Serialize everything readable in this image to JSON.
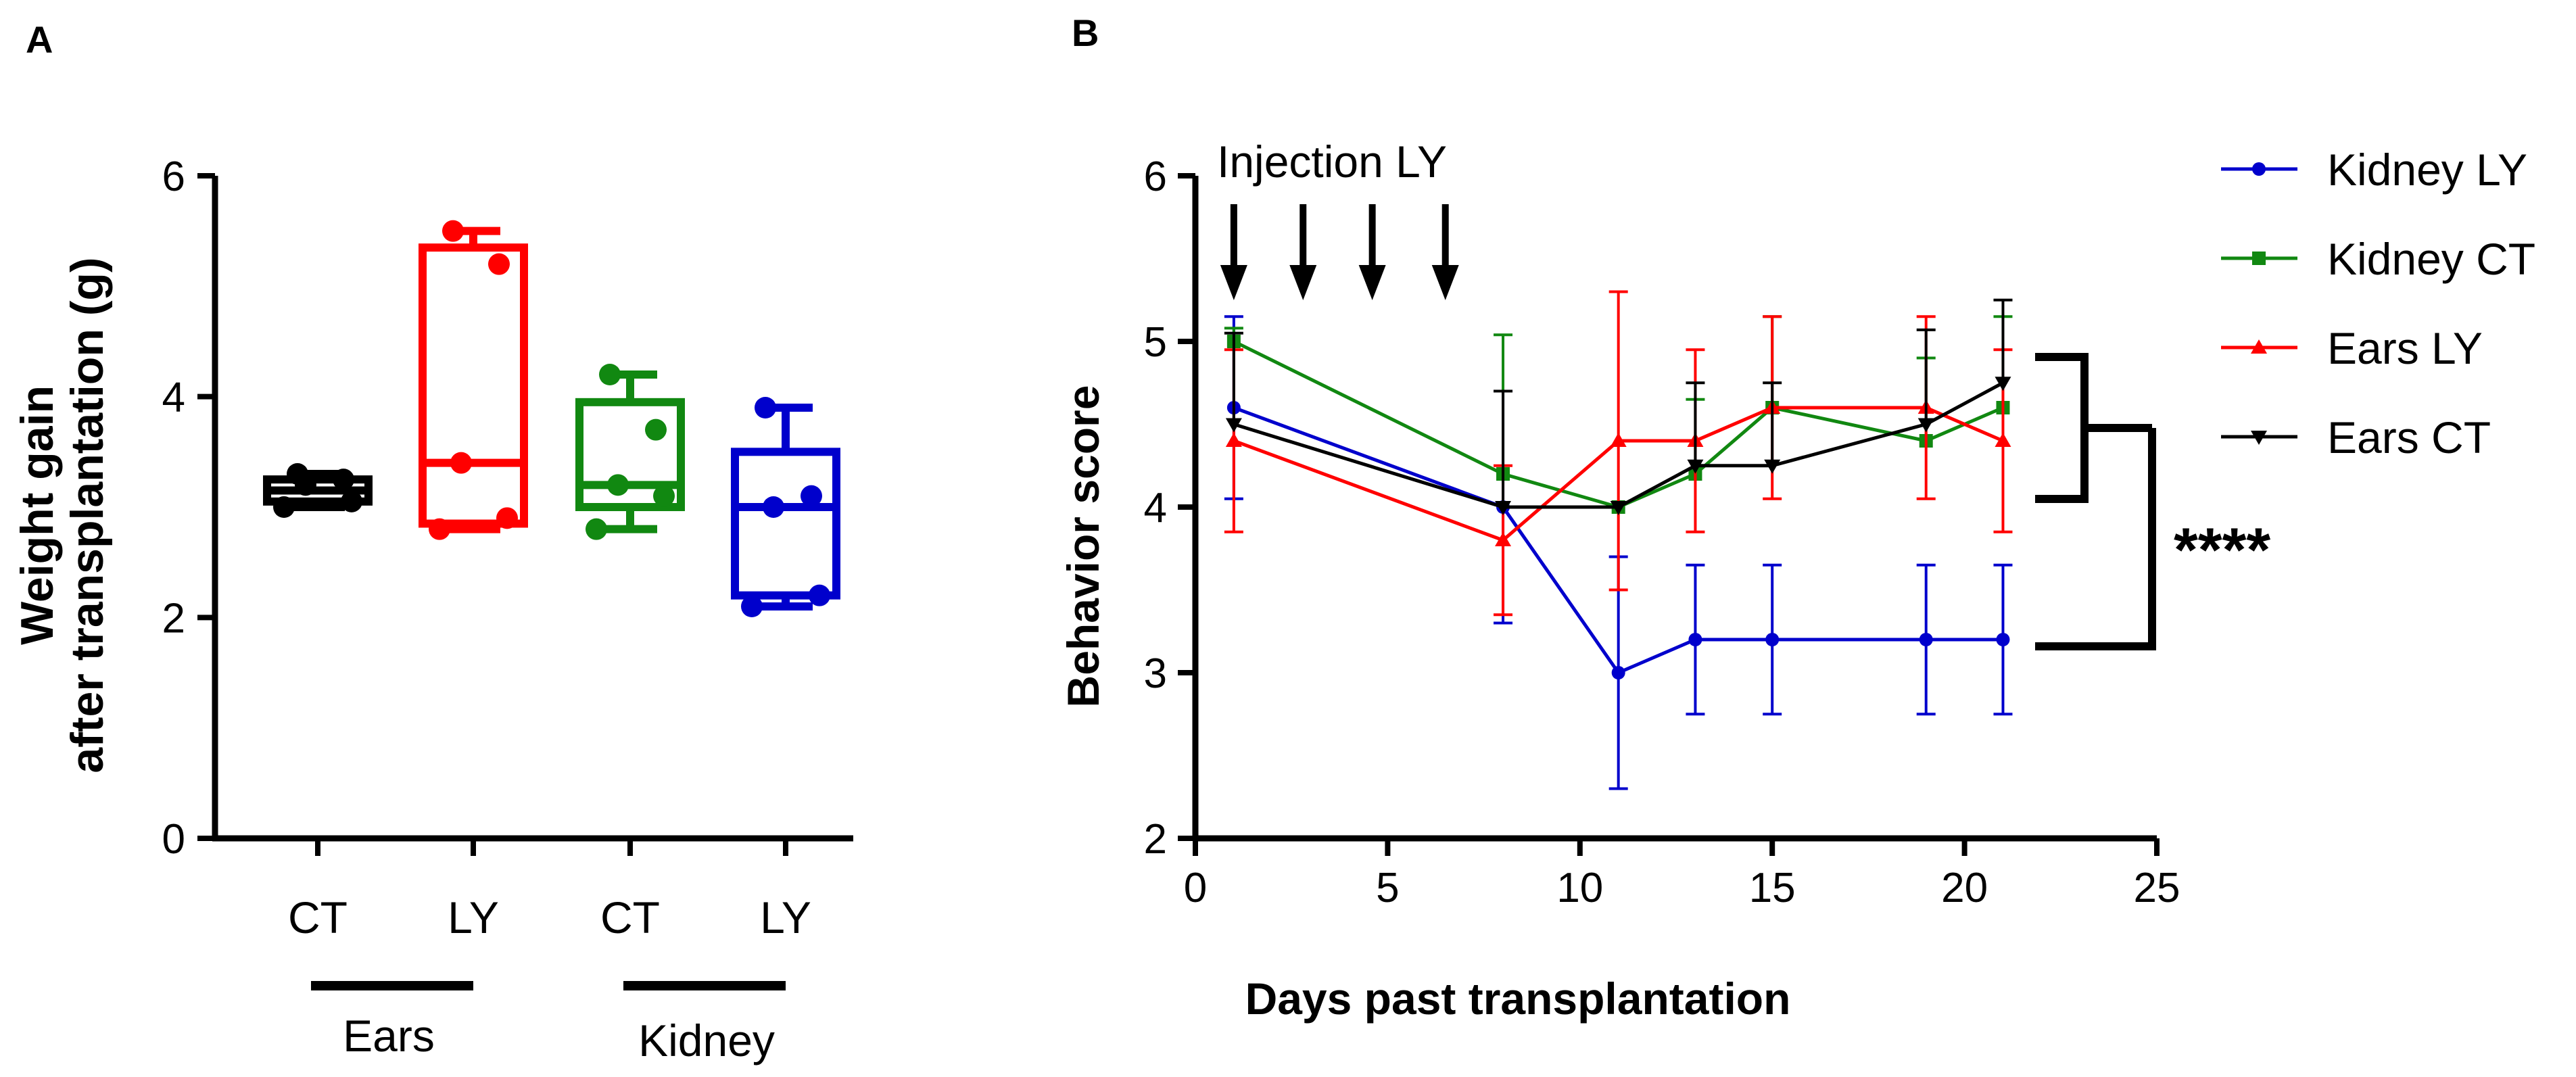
{
  "chart_data": [
    {
      "panel": "A",
      "type": "box",
      "ylabel_line1": "Weight gain",
      "ylabel_line2": "after transplantation (g)",
      "ylim": [
        0,
        6
      ],
      "yticks": [
        0,
        2,
        4,
        6
      ],
      "groups": [
        {
          "label": "CT",
          "color": "#000000",
          "min": 3.0,
          "q1": 3.05,
          "median": 3.15,
          "q3": 3.25,
          "max": 3.3,
          "points": [
            3.0,
            3.05,
            3.2,
            3.25,
            3.3
          ]
        },
        {
          "label": "LY",
          "color": "#ff0000",
          "min": 2.8,
          "q1": 2.85,
          "median": 3.4,
          "q3": 5.35,
          "max": 5.5,
          "points": [
            2.8,
            2.9,
            3.4,
            5.2,
            5.5
          ]
        },
        {
          "label": "CT",
          "color": "#118811",
          "min": 2.8,
          "q1": 3.0,
          "median": 3.2,
          "q3": 3.95,
          "max": 4.2,
          "points": [
            2.8,
            3.1,
            3.2,
            3.7,
            4.2
          ]
        },
        {
          "label": "LY",
          "color": "#0000cc",
          "min": 2.1,
          "q1": 2.2,
          "median": 3.0,
          "q3": 3.5,
          "max": 3.9,
          "points": [
            2.1,
            2.2,
            3.0,
            3.1,
            3.9
          ]
        }
      ],
      "bracket_labels": [
        "Ears",
        "Kidney"
      ]
    },
    {
      "panel": "B",
      "type": "line",
      "xlabel": "Days past transplantation",
      "ylabel": "Behavior score",
      "xlim": [
        0,
        25
      ],
      "ylim": [
        2,
        6
      ],
      "xticks": [
        0,
        5,
        10,
        15,
        20,
        25
      ],
      "yticks": [
        2,
        3,
        4,
        5,
        6
      ],
      "annotation": "Injection LY",
      "injection_days": [
        1,
        2.8,
        4.6,
        6.5
      ],
      "significance": "****",
      "series": [
        {
          "name": "Kidney LY",
          "color": "#0000cc",
          "marker": "circle",
          "x": [
            1,
            8,
            11,
            13,
            15,
            19,
            21
          ],
          "y": [
            4.6,
            4.0,
            3.0,
            3.2,
            3.2,
            3.2,
            3.2
          ],
          "err": [
            0.55,
            0.7,
            0.7,
            0.45,
            0.45,
            0.45,
            0.45
          ]
        },
        {
          "name": "Kidney CT",
          "color": "#118811",
          "marker": "square",
          "x": [
            1,
            8,
            11,
            13,
            15,
            19,
            21
          ],
          "y": [
            5.0,
            4.2,
            4.0,
            4.2,
            4.6,
            4.4,
            4.6
          ],
          "err": [
            0.08,
            0.84,
            0.0,
            0.45,
            0.55,
            0.5,
            0.55
          ]
        },
        {
          "name": "Ears LY",
          "color": "#ff0000",
          "marker": "triangle-up",
          "x": [
            1,
            8,
            11,
            13,
            15,
            19,
            21
          ],
          "y": [
            4.4,
            3.8,
            4.4,
            4.4,
            4.6,
            4.6,
            4.4
          ],
          "err": [
            0.55,
            0.45,
            0.9,
            0.55,
            0.55,
            0.55,
            0.55
          ]
        },
        {
          "name": "Ears CT",
          "color": "#000000",
          "marker": "triangle-down",
          "x": [
            1,
            8,
            11,
            13,
            15,
            19,
            21
          ],
          "y": [
            4.5,
            4.0,
            4.0,
            4.25,
            4.25,
            4.5,
            4.75
          ],
          "err": [
            0.55,
            0.7,
            0.0,
            0.5,
            0.5,
            0.57,
            0.5
          ]
        }
      ]
    }
  ],
  "labels": {
    "panel_a": "A",
    "panel_b": "B"
  }
}
